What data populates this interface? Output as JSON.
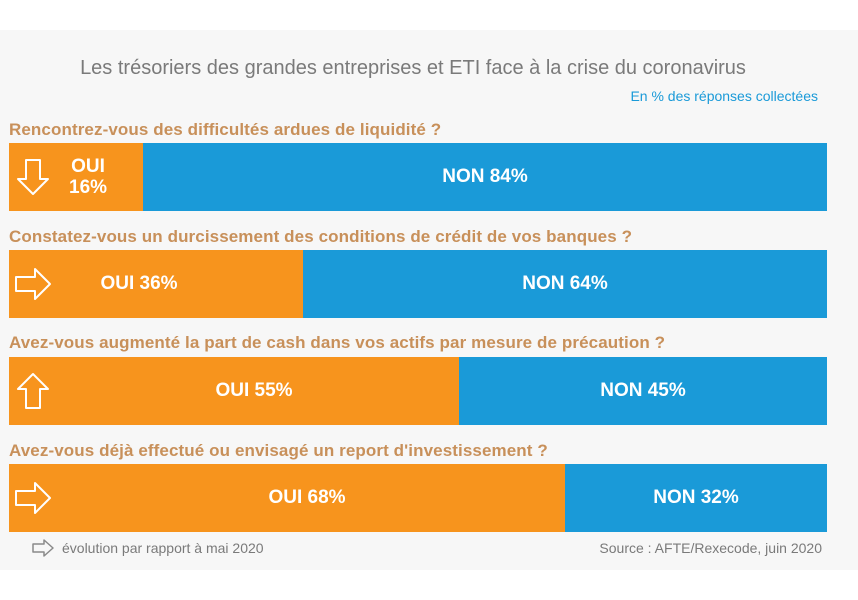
{
  "header": {
    "title": "Les trésoriers des grandes entreprises et ETI face à la crise du coronavirus",
    "subtitle": "En % des réponses collectées"
  },
  "chart_data": {
    "type": "bar",
    "orientation": "horizontal-stacked-100",
    "colors": {
      "oui": "#f7941d",
      "non": "#1a9ad8"
    },
    "questions": [
      {
        "question": "Rencontrez-vous des difficultés ardues de liquidité ?",
        "oui_label": "OUI 16%",
        "non_label": "NON 84%",
        "oui": 16,
        "non": 84,
        "trend_icon": "arrow-down-icon"
      },
      {
        "question": "Constatez-vous un durcissement des conditions de crédit de vos banques ?",
        "oui_label": "OUI 36%",
        "non_label": "NON 64%",
        "oui": 36,
        "non": 64,
        "trend_icon": "arrow-right-icon"
      },
      {
        "question": "Avez-vous augmenté la part de cash dans vos actifs par mesure de précaution ?",
        "oui_label": "OUI 55%",
        "non_label": "NON 45%",
        "oui": 55,
        "non": 45,
        "trend_icon": "arrow-up-icon"
      },
      {
        "question": "Avez-vous déjà effectué ou envisagé un report  d'investissement ?",
        "oui_label": "OUI 68%",
        "non_label": "NON 32%",
        "oui": 68,
        "non": 32,
        "trend_icon": "arrow-right-icon"
      }
    ]
  },
  "footer": {
    "legend": "évolution par rapport à mai 2020",
    "source": "Source : AFTE/Rexecode, juin 2020"
  }
}
